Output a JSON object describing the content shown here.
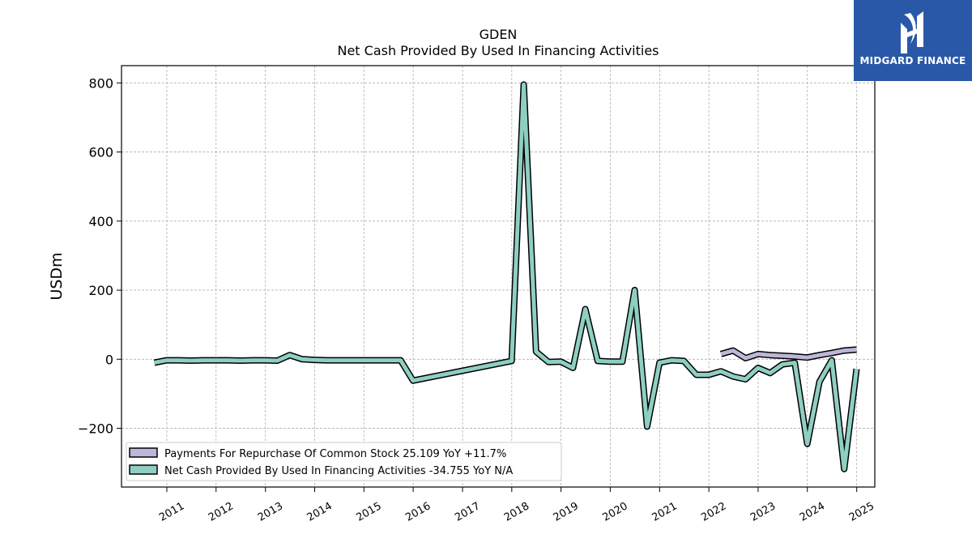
{
  "chart_data": {
    "type": "line",
    "title": "GDEN",
    "subtitle": "Net Cash Provided By Used In Financing Activities",
    "ylabel": "USDm",
    "xlabel": "",
    "ylim": [
      -370,
      850
    ],
    "xlim": [
      "2010-01-30",
      "2025-05-15"
    ],
    "yticks": [
      -200,
      0,
      200,
      400,
      600,
      800
    ],
    "ytick_labels": [
      "−200",
      "0",
      "200",
      "400",
      "600",
      "800"
    ],
    "xtick_labels": [
      "2011",
      "2012",
      "2013",
      "2014",
      "2015",
      "2016",
      "2017",
      "2018",
      "2019",
      "2020",
      "2021",
      "2022",
      "2023",
      "2024",
      "2025"
    ],
    "grid": true,
    "legend_position": "lower-left",
    "series": [
      {
        "name": "Payments For Repurchase Of Common Stock",
        "legend_label": "Payments For Repurchase Of Common Stock  25.109 YoY +11.7%",
        "color": "#bcb7d9",
        "points": [
          [
            "2022-03-31",
            15
          ],
          [
            "2022-06-30",
            25
          ],
          [
            "2022-09-30",
            3
          ],
          [
            "2022-12-31",
            15
          ],
          [
            "2023-03-31",
            12
          ],
          [
            "2023-06-30",
            10
          ],
          [
            "2023-09-30",
            8
          ],
          [
            "2023-12-31",
            5
          ],
          [
            "2024-03-31",
            12
          ],
          [
            "2024-06-30",
            18
          ],
          [
            "2024-09-30",
            25
          ],
          [
            "2024-12-31",
            28
          ]
        ]
      },
      {
        "name": "Net Cash Provided By Used In Financing Activities",
        "legend_label": "Net Cash Provided By Used In Financing Activities  -34.755 YoY N/A",
        "color": "#8ecfc2",
        "points": [
          [
            "2010-09-30",
            -10
          ],
          [
            "2010-12-31",
            -3
          ],
          [
            "2011-03-31",
            -3
          ],
          [
            "2011-06-30",
            -4
          ],
          [
            "2011-09-30",
            -3
          ],
          [
            "2011-12-31",
            -3
          ],
          [
            "2012-03-31",
            -3
          ],
          [
            "2012-06-30",
            -4
          ],
          [
            "2012-09-30",
            -3
          ],
          [
            "2012-12-31",
            -3
          ],
          [
            "2013-03-31",
            -4
          ],
          [
            "2013-06-30",
            12
          ],
          [
            "2013-09-30",
            0
          ],
          [
            "2013-12-31",
            -2
          ],
          [
            "2014-03-31",
            -3
          ],
          [
            "2014-06-30",
            -3
          ],
          [
            "2014-09-30",
            -3
          ],
          [
            "2014-12-31",
            -3
          ],
          [
            "2015-03-31",
            -3
          ],
          [
            "2015-06-30",
            -3
          ],
          [
            "2015-09-30",
            -3
          ],
          [
            "2015-12-31",
            -62
          ],
          [
            "2017-12-31",
            -5
          ],
          [
            "2018-03-31",
            795
          ],
          [
            "2018-06-30",
            22
          ],
          [
            "2018-09-30",
            -8
          ],
          [
            "2018-12-31",
            -7
          ],
          [
            "2019-03-31",
            -25
          ],
          [
            "2019-06-30",
            145
          ],
          [
            "2019-09-30",
            -5
          ],
          [
            "2019-12-31",
            -7
          ],
          [
            "2020-03-31",
            -7
          ],
          [
            "2020-06-30",
            200
          ],
          [
            "2020-09-30",
            -195
          ],
          [
            "2020-12-31",
            -10
          ],
          [
            "2021-03-31",
            -3
          ],
          [
            "2021-06-30",
            -5
          ],
          [
            "2021-09-30",
            -45
          ],
          [
            "2021-12-31",
            -45
          ],
          [
            "2022-03-31",
            -35
          ],
          [
            "2022-06-30",
            -50
          ],
          [
            "2022-09-30",
            -58
          ],
          [
            "2022-12-31",
            -25
          ],
          [
            "2023-03-31",
            -40
          ],
          [
            "2023-06-30",
            -15
          ],
          [
            "2023-09-30",
            -10
          ],
          [
            "2023-12-31",
            -245
          ],
          [
            "2024-03-31",
            -65
          ],
          [
            "2024-06-30",
            -3
          ],
          [
            "2024-09-30",
            -318
          ],
          [
            "2024-12-31",
            -28
          ]
        ]
      }
    ]
  },
  "logo": {
    "text": "MIDGARD FINANCE"
  },
  "colors": {
    "axis": "#000000",
    "grid": "#b0b0b0",
    "logo_bg": "#2a58a8"
  }
}
